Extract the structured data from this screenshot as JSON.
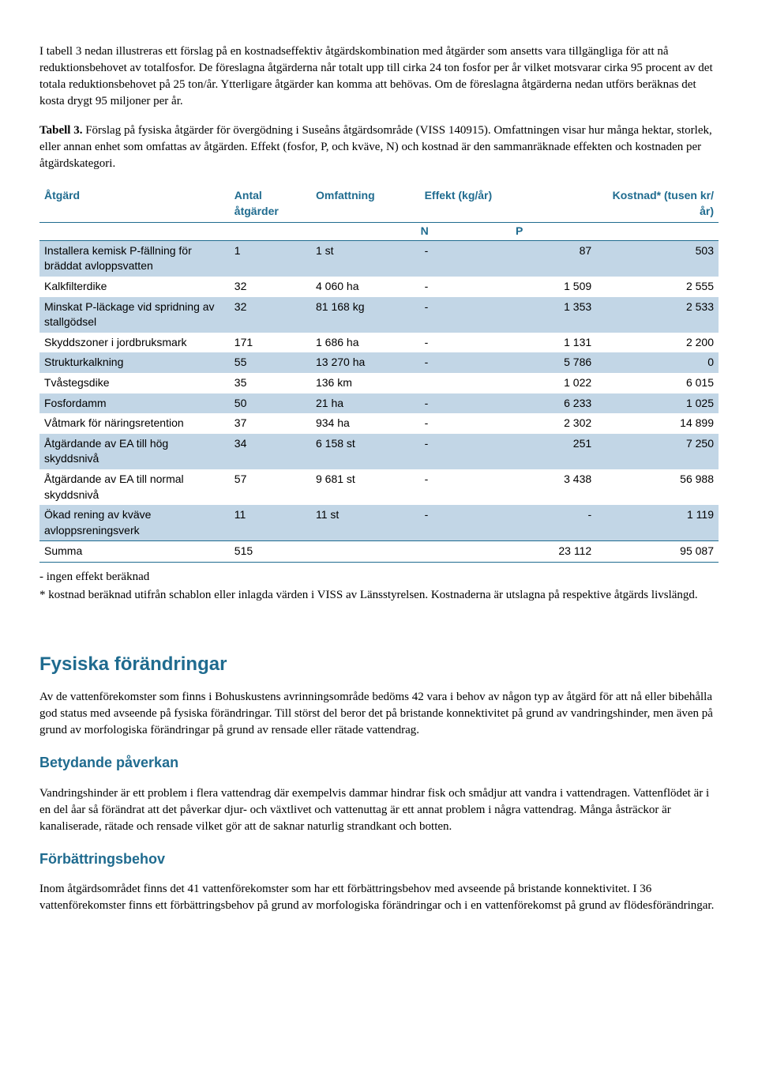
{
  "intro_paragraph": "I tabell 3 nedan illustreras ett förslag på en kostnadseffektiv åtgärdskombination med åtgärder som ansetts vara tillgängliga för att nå reduktionsbehovet av totalfosfor. De föreslagna åtgärderna når totalt upp till cirka 24 ton fosfor per år vilket motsvarar cirka 95 procent av det totala reduktionsbehovet på 25 ton/år. Ytterligare åtgärder kan komma att behövas. Om de föreslagna åtgärderna nedan utförs beräknas det kosta drygt 95 miljoner per år.",
  "table_caption_bold": "Tabell 3.",
  "table_caption_rest": " Förslag på fysiska åtgärder för övergödning i Suseåns åtgärdsområde (VISS 140915). Omfattningen visar hur många hektar, storlek, eller annan enhet som omfattas av åtgärden. Effekt (fosfor, P, och kväve, N) och kostnad är den sammanräknade effekten och kostnaden per åtgärdskategori.",
  "table": {
    "headers": {
      "atgard": "Åtgärd",
      "antal": "Antal åtgärder",
      "omfattning": "Omfattning",
      "effekt": "Effekt (kg/år)",
      "n": "N",
      "p": "P",
      "kostnad": "Kostnad* (tusen kr/år)"
    },
    "rows": [
      {
        "shaded": true,
        "atgard": "Installera kemisk P-fällning för bräddat avloppsvatten",
        "antal": "1",
        "omfattning": "1 st",
        "n": "-",
        "p": "87",
        "kostnad": "503"
      },
      {
        "shaded": false,
        "atgard": "Kalkfilterdike",
        "antal": "32",
        "omfattning": "4 060 ha",
        "n": "-",
        "p": "1 509",
        "kostnad": "2 555"
      },
      {
        "shaded": true,
        "atgard": "Minskat P-läckage vid spridning av stallgödsel",
        "antal": "32",
        "omfattning": "81 168 kg",
        "n": "-",
        "p": "1 353",
        "kostnad": "2 533"
      },
      {
        "shaded": false,
        "atgard": "Skyddszoner i jordbruksmark",
        "antal": "171",
        "omfattning": "1 686 ha",
        "n": "-",
        "p": "1 131",
        "kostnad": "2 200"
      },
      {
        "shaded": true,
        "atgard": "Strukturkalkning",
        "antal": "55",
        "omfattning": "13 270 ha",
        "n": "-",
        "p": "5 786",
        "kostnad": "0"
      },
      {
        "shaded": false,
        "atgard": "Tvåstegsdike",
        "antal": "35",
        "omfattning": "136 km",
        "n": "",
        "p": "1 022",
        "kostnad": "6 015"
      },
      {
        "shaded": true,
        "atgard": "Fosfordamm",
        "antal": "50",
        "omfattning": "21 ha",
        "n": "-",
        "p": "6 233",
        "kostnad": "1 025"
      },
      {
        "shaded": false,
        "atgard": "Våtmark för näringsretention",
        "antal": "37",
        "omfattning": "934 ha",
        "n": "-",
        "p": "2 302",
        "kostnad": "14 899"
      },
      {
        "shaded": true,
        "atgard": "Åtgärdande av EA till hög skyddsnivå",
        "antal": "34",
        "omfattning": "6 158 st",
        "n": "-",
        "p": "251",
        "kostnad": "7 250"
      },
      {
        "shaded": false,
        "atgard": "Åtgärdande av EA till normal skyddsnivå",
        "antal": "57",
        "omfattning": "9 681 st",
        "n": "-",
        "p": "3 438",
        "kostnad": "56 988"
      },
      {
        "shaded": true,
        "atgard": "Ökad rening av kväve avloppsreningsverk",
        "antal": "11",
        "omfattning": "11 st",
        "n": "-",
        "p": "-",
        "kostnad": "1 119"
      }
    ],
    "summa": {
      "label": "Summa",
      "antal": "515",
      "omfattning": "",
      "n": "",
      "p": "23 112",
      "kostnad": "95 087"
    }
  },
  "footnote1": "- ingen effekt beräknad",
  "footnote2": "* kostnad beräknad utifrån schablon eller inlagda värden i VISS av Länsstyrelsen. Kostnaderna är utslagna på respektive åtgärds livslängd.",
  "section_heading": "Fysiska förändringar",
  "section_paragraph": "Av de vattenförekomster som finns i Bohuskustens avrinningsområde bedöms 42 vara i behov av någon typ av åtgärd för att nå eller bibehålla god status med avseende på fysiska förändringar. Till störst del beror det på bristande konnektivitet på grund av vandringshinder, men även på grund av morfologiska förändringar på grund av rensade eller rätade vattendrag.",
  "sub1_heading": "Betydande påverkan",
  "sub1_paragraph": "Vandringshinder är ett problem i flera vattendrag där exempelvis dammar hindrar fisk och smådjur att vandra i vattendragen. Vattenflödet är i en del åar så förändrat att det påverkar djur- och växtlivet och vattenuttag är ett annat problem i några vattendrag. Många åsträckor är kanaliserade, rätade och rensade vilket gör att de saknar naturlig strandkant och botten.",
  "sub2_heading": "Förbättringsbehov",
  "sub2_paragraph": "Inom åtgärdsområdet finns det 41 vattenförekomster som har ett förbättringsbehov med avseende på bristande konnektivitet. I 36 vattenförekomster finns ett förbättringsbehov på grund av morfologiska förändringar och i en vattenförekomst på grund av flödesförändringar."
}
